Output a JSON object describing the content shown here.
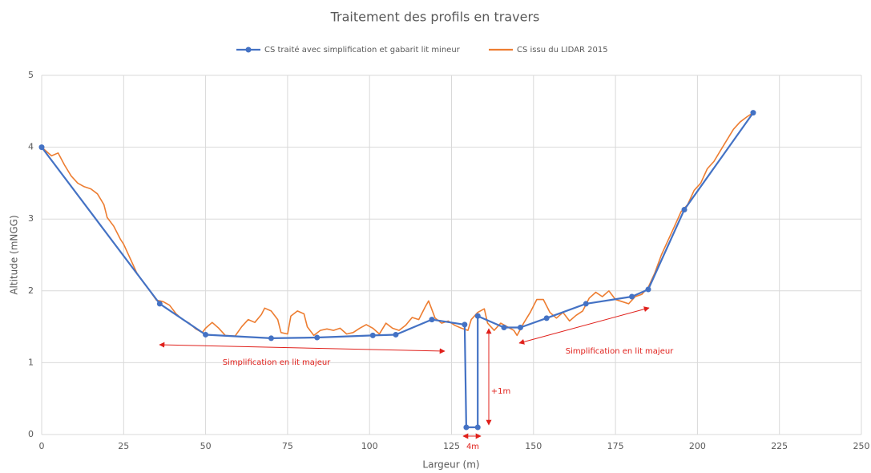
{
  "chart_data": {
    "type": "line",
    "title": "Traitement des profils en travers",
    "xlabel": "Largeur (m)",
    "ylabel": "Altitude (mNGG)",
    "xlim": [
      0,
      250
    ],
    "xticks": [
      0,
      25,
      50,
      75,
      100,
      125,
      150,
      175,
      200,
      225,
      250
    ],
    "ylim": [
      0,
      5
    ],
    "yticks": [
      0,
      1,
      2,
      3,
      4,
      5
    ],
    "grid": true,
    "legend": "top",
    "series": [
      {
        "name": "CS traité avec simplification et gabarit lit mineur",
        "color": "#4472c4",
        "markers": true,
        "x": [
          0,
          36,
          50,
          70,
          84,
          101,
          108,
          119,
          129,
          129.5,
          133,
          133,
          141,
          146,
          154,
          166,
          180,
          185,
          196,
          217
        ],
        "values": [
          4.0,
          1.82,
          1.39,
          1.34,
          1.35,
          1.38,
          1.39,
          1.6,
          1.53,
          0.1,
          0.1,
          1.65,
          1.49,
          1.49,
          1.62,
          1.82,
          1.92,
          2.02,
          3.13,
          4.48
        ]
      },
      {
        "name": "CS issu du LIDAR 2015",
        "color": "#ed7d31",
        "markers": false,
        "x": [
          0,
          3,
          5,
          7,
          9,
          11,
          13,
          15,
          17,
          19,
          20,
          22,
          24,
          25,
          27,
          29,
          31,
          33,
          35,
          37,
          39,
          41,
          43,
          45,
          47,
          49,
          50,
          52,
          54,
          56,
          59,
          61,
          63,
          65,
          67,
          68,
          70,
          72,
          73,
          75,
          76,
          78,
          80,
          81,
          83,
          85,
          87,
          89,
          91,
          93,
          95,
          97,
          99,
          101,
          103,
          105,
          107,
          109,
          111,
          113,
          115,
          117,
          118,
          120,
          122,
          124,
          126,
          128,
          130,
          131,
          133,
          135,
          136,
          138,
          140,
          142,
          144,
          145,
          147,
          149,
          151,
          153,
          155,
          157,
          159,
          161,
          163,
          165,
          167,
          169,
          171,
          173,
          175,
          177,
          179,
          181,
          183,
          185,
          187,
          189,
          191,
          193,
          195,
          197,
          199,
          201,
          203,
          205,
          207,
          209,
          211,
          213,
          215,
          217
        ],
        "values": [
          4.0,
          3.88,
          3.92,
          3.75,
          3.6,
          3.5,
          3.45,
          3.42,
          3.35,
          3.2,
          3.02,
          2.9,
          2.72,
          2.65,
          2.45,
          2.25,
          2.12,
          2.0,
          1.87,
          1.85,
          1.8,
          1.68,
          1.6,
          1.55,
          1.47,
          1.42,
          1.48,
          1.56,
          1.48,
          1.38,
          1.37,
          1.5,
          1.6,
          1.56,
          1.67,
          1.76,
          1.72,
          1.6,
          1.42,
          1.4,
          1.65,
          1.72,
          1.68,
          1.5,
          1.38,
          1.45,
          1.47,
          1.45,
          1.48,
          1.4,
          1.42,
          1.48,
          1.53,
          1.48,
          1.4,
          1.55,
          1.48,
          1.45,
          1.52,
          1.63,
          1.6,
          1.78,
          1.86,
          1.62,
          1.55,
          1.58,
          1.52,
          1.48,
          1.45,
          1.6,
          1.7,
          1.75,
          1.55,
          1.45,
          1.55,
          1.5,
          1.45,
          1.38,
          1.55,
          1.7,
          1.88,
          1.88,
          1.7,
          1.62,
          1.7,
          1.58,
          1.66,
          1.72,
          1.9,
          1.98,
          1.92,
          2.0,
          1.88,
          1.85,
          1.82,
          1.92,
          1.95,
          2.05,
          2.25,
          2.5,
          2.7,
          2.9,
          3.1,
          3.2,
          3.4,
          3.5,
          3.7,
          3.8,
          3.95,
          4.1,
          4.25,
          4.35,
          4.42,
          4.48
        ]
      }
    ],
    "annotations": [
      "Simplification en lit majeur",
      "Simplification en lit majeur",
      "+1m",
      "4m"
    ]
  }
}
